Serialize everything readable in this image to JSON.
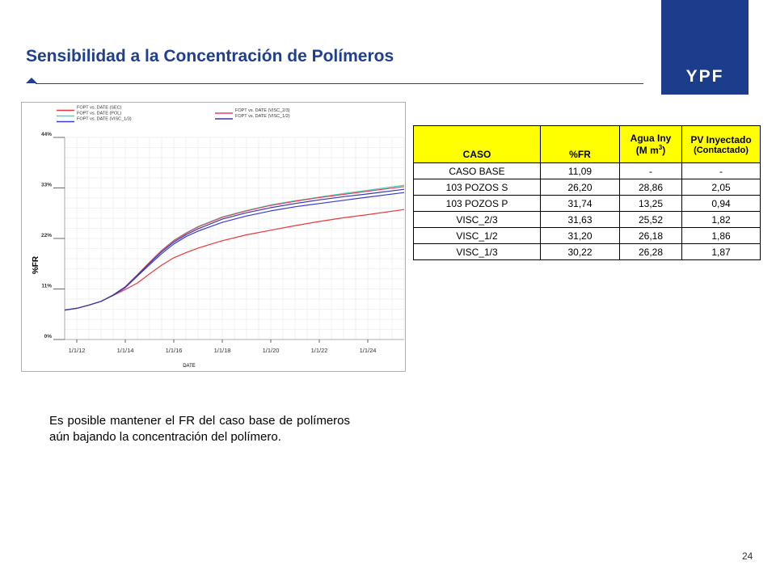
{
  "slide": {
    "title": "Sensibilidad a la Concentración de Polímeros",
    "logo_text": "YPF",
    "page_number": "24",
    "body_text": "Es posible mantener el FR del caso base de polímeros aún bajando la concentración del polímero.",
    "colors": {
      "brand_blue": "#1c3d8c",
      "title_blue": "#1f3f8f",
      "table_header": "#ffff00"
    }
  },
  "chart_data": {
    "type": "line",
    "xlabel": "DATE",
    "ylabel": "%FR",
    "x_ticks": [
      "1/1/12",
      "1/1/14",
      "1/1/16",
      "1/1/18",
      "1/1/20",
      "1/1/22",
      "1/1/24"
    ],
    "y_ticks": [
      "0%",
      "11%",
      "22%",
      "33%",
      "44%"
    ],
    "xlim": [
      2011.5,
      2025.5
    ],
    "ylim": [
      0,
      44
    ],
    "grid": true,
    "legend": [
      {
        "label": "FOPT vs. DATE (SEC)",
        "color": "#e8393a"
      },
      {
        "label": "FOPT vs. DATE (POL)",
        "color": "#3cdcb4"
      },
      {
        "label": "FOPT vs. DATE (VISC_1/3)",
        "color": "#3a3ad8"
      },
      {
        "label": "FOPT vs. DATE (VISC_2/3)",
        "color": "#e84060"
      },
      {
        "label": "FOPT vs. DATE (VISC_1/2)",
        "color": "#343ca8"
      }
    ],
    "series": [
      {
        "name": "FOPT vs. DATE (SEC)",
        "color": "#e8393a",
        "x": [
          2011.5,
          2012,
          2012.5,
          2013,
          2013.5,
          2014,
          2014.5,
          2015,
          2015.5,
          2016,
          2016.5,
          2017,
          2018,
          2019,
          2020,
          2021,
          2022,
          2023,
          2024,
          2025.5
        ],
        "y": [
          6.4,
          6.8,
          7.5,
          8.3,
          9.6,
          10.9,
          12.3,
          14.3,
          16.2,
          17.8,
          18.9,
          19.9,
          21.5,
          22.8,
          23.8,
          24.8,
          25.7,
          26.5,
          27.2,
          28.3
        ]
      },
      {
        "name": "FOPT vs. DATE (POL)",
        "color": "#3cdcb4",
        "x": [
          2011.5,
          2012,
          2012.5,
          2013,
          2013.5,
          2014,
          2014.5,
          2015,
          2015.5,
          2016,
          2016.5,
          2017,
          2018,
          2019,
          2020,
          2021,
          2022,
          2023,
          2024,
          2025.5
        ],
        "y": [
          6.4,
          6.8,
          7.5,
          8.3,
          9.7,
          11.5,
          14.1,
          16.8,
          19.4,
          21.6,
          23.2,
          24.6,
          26.7,
          28.1,
          29.3,
          30.2,
          31.0,
          31.8,
          32.5,
          33.6
        ]
      },
      {
        "name": "FOPT vs. DATE (VISC_1/3)",
        "color": "#3a3ad8",
        "x": [
          2011.5,
          2012,
          2012.5,
          2013,
          2013.5,
          2014,
          2014.5,
          2015,
          2015.5,
          2016,
          2016.5,
          2017,
          2018,
          2019,
          2020,
          2021,
          2022,
          2023,
          2024,
          2025.5
        ],
        "y": [
          6.4,
          6.8,
          7.5,
          8.3,
          9.6,
          11.3,
          13.8,
          16.3,
          18.7,
          20.8,
          22.4,
          23.6,
          25.5,
          26.9,
          28.0,
          28.9,
          29.6,
          30.3,
          31.0,
          32.0
        ]
      },
      {
        "name": "FOPT vs. DATE (VISC_2/3)",
        "color": "#e84060",
        "x": [
          2011.5,
          2012,
          2012.5,
          2013,
          2013.5,
          2014,
          2014.5,
          2015,
          2015.5,
          2016,
          2016.5,
          2017,
          2018,
          2019,
          2020,
          2021,
          2022,
          2023,
          2024,
          2025.5
        ],
        "y": [
          6.4,
          6.8,
          7.5,
          8.3,
          9.7,
          11.5,
          14.1,
          16.8,
          19.4,
          21.5,
          23.1,
          24.5,
          26.6,
          28.0,
          29.2,
          30.1,
          30.9,
          31.6,
          32.3,
          33.3
        ]
      },
      {
        "name": "FOPT vs. DATE (VISC_1/2)",
        "color": "#343ca8",
        "x": [
          2011.5,
          2012,
          2012.5,
          2013,
          2013.5,
          2014,
          2014.5,
          2015,
          2015.5,
          2016,
          2016.5,
          2017,
          2018,
          2019,
          2020,
          2021,
          2022,
          2023,
          2024,
          2025.5
        ],
        "y": [
          6.4,
          6.8,
          7.5,
          8.3,
          9.7,
          11.4,
          14.0,
          16.6,
          19.1,
          21.2,
          22.8,
          24.1,
          26.2,
          27.6,
          28.7,
          29.6,
          30.4,
          31.1,
          31.7,
          32.7
        ]
      }
    ]
  },
  "table": {
    "headers": {
      "caso": "CASO",
      "fr": "%FR",
      "agua_line1": "Agua Iny",
      "agua_line2": "(M m",
      "agua_sup": "3",
      "agua_close": ")",
      "pv_line1": "PV Inyectado",
      "pv_line2": "(Contactado)"
    },
    "rows": [
      [
        "CASO BASE",
        "11,09",
        "-",
        "-"
      ],
      [
        "103 POZOS S",
        "26,20",
        "28,86",
        "2,05"
      ],
      [
        "103 POZOS P",
        "31,74",
        "13,25",
        "0,94"
      ],
      [
        "VISC_2/3",
        "31,63",
        "25,52",
        "1,82"
      ],
      [
        "VISC_1/2",
        "31,20",
        "26,18",
        "1,86"
      ],
      [
        "VISC_1/3",
        "30,22",
        "26,28",
        "1,87"
      ]
    ]
  }
}
